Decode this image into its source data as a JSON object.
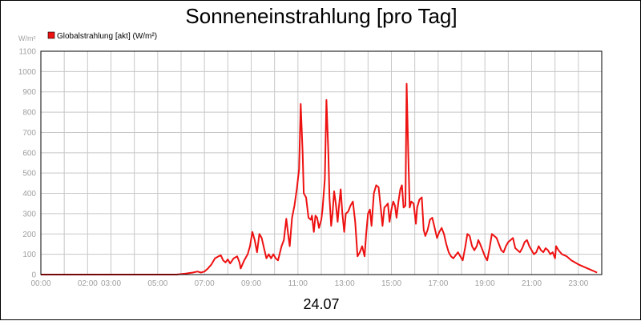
{
  "chart_data": {
    "type": "line",
    "title": "Sonneneinstrahlung [pro Tag]",
    "ylabel": "W/m²",
    "xlabel": "24.07",
    "ylim": [
      0,
      1100
    ],
    "xlim": [
      0,
      24
    ],
    "grid": true,
    "legend_position": "top-left",
    "yticks": [
      "0",
      "100",
      "200",
      "300",
      "400",
      "500",
      "600",
      "700",
      "800",
      "900",
      "1000",
      "1100"
    ],
    "xticks": [
      {
        "x": 0,
        "label": "00:00"
      },
      {
        "x": 2,
        "label": "02:00"
      },
      {
        "x": 3,
        "label": "03:00"
      },
      {
        "x": 5,
        "label": "05:00"
      },
      {
        "x": 7,
        "label": "07:00"
      },
      {
        "x": 9,
        "label": "09:00"
      },
      {
        "x": 11,
        "label": "11:00"
      },
      {
        "x": 13,
        "label": "13:00"
      },
      {
        "x": 15,
        "label": "15:00"
      },
      {
        "x": 17,
        "label": "17:00"
      },
      {
        "x": 19,
        "label": "19:00"
      },
      {
        "x": 21,
        "label": "21:00"
      },
      {
        "x": 23,
        "label": "23:00"
      }
    ],
    "series": [
      {
        "name": "Globalstrahlung [akt] (W/m²)",
        "color": "#ee1111",
        "points": [
          [
            0,
            0
          ],
          [
            5.8,
            0
          ],
          [
            6.2,
            5
          ],
          [
            6.5,
            10
          ],
          [
            6.7,
            15
          ],
          [
            6.85,
            10
          ],
          [
            7.0,
            15
          ],
          [
            7.15,
            30
          ],
          [
            7.3,
            50
          ],
          [
            7.45,
            80
          ],
          [
            7.6,
            90
          ],
          [
            7.7,
            95
          ],
          [
            7.8,
            70
          ],
          [
            7.9,
            60
          ],
          [
            8.0,
            75
          ],
          [
            8.1,
            55
          ],
          [
            8.25,
            80
          ],
          [
            8.4,
            90
          ],
          [
            8.5,
            60
          ],
          [
            8.55,
            30
          ],
          [
            8.7,
            70
          ],
          [
            8.85,
            100
          ],
          [
            8.95,
            140
          ],
          [
            9.05,
            210
          ],
          [
            9.15,
            170
          ],
          [
            9.25,
            110
          ],
          [
            9.35,
            200
          ],
          [
            9.45,
            180
          ],
          [
            9.55,
            130
          ],
          [
            9.65,
            80
          ],
          [
            9.75,
            100
          ],
          [
            9.85,
            80
          ],
          [
            9.95,
            100
          ],
          [
            10.05,
            80
          ],
          [
            10.15,
            70
          ],
          [
            10.3,
            140
          ],
          [
            10.4,
            170
          ],
          [
            10.5,
            275
          ],
          [
            10.6,
            180
          ],
          [
            10.65,
            140
          ],
          [
            10.75,
            280
          ],
          [
            10.85,
            340
          ],
          [
            10.95,
            420
          ],
          [
            11.05,
            520
          ],
          [
            11.12,
            840
          ],
          [
            11.2,
            600
          ],
          [
            11.25,
            400
          ],
          [
            11.35,
            380
          ],
          [
            11.45,
            280
          ],
          [
            11.55,
            270
          ],
          [
            11.6,
            290
          ],
          [
            11.68,
            210
          ],
          [
            11.75,
            290
          ],
          [
            11.82,
            280
          ],
          [
            11.9,
            230
          ],
          [
            12.0,
            270
          ],
          [
            12.05,
            320
          ],
          [
            12.15,
            470
          ],
          [
            12.22,
            860
          ],
          [
            12.3,
            600
          ],
          [
            12.35,
            380
          ],
          [
            12.42,
            240
          ],
          [
            12.48,
            300
          ],
          [
            12.55,
            410
          ],
          [
            12.62,
            350
          ],
          [
            12.7,
            260
          ],
          [
            12.75,
            330
          ],
          [
            12.83,
            420
          ],
          [
            12.9,
            300
          ],
          [
            12.98,
            210
          ],
          [
            13.05,
            300
          ],
          [
            13.15,
            310
          ],
          [
            13.25,
            340
          ],
          [
            13.35,
            360
          ],
          [
            13.45,
            260
          ],
          [
            13.55,
            90
          ],
          [
            13.65,
            110
          ],
          [
            13.75,
            140
          ],
          [
            13.85,
            90
          ],
          [
            13.92,
            200
          ],
          [
            14.0,
            300
          ],
          [
            14.08,
            320
          ],
          [
            14.15,
            240
          ],
          [
            14.25,
            400
          ],
          [
            14.35,
            440
          ],
          [
            14.45,
            430
          ],
          [
            14.55,
            320
          ],
          [
            14.62,
            240
          ],
          [
            14.7,
            330
          ],
          [
            14.78,
            340
          ],
          [
            14.85,
            350
          ],
          [
            14.92,
            260
          ],
          [
            15.0,
            320
          ],
          [
            15.08,
            360
          ],
          [
            15.15,
            340
          ],
          [
            15.22,
            280
          ],
          [
            15.3,
            360
          ],
          [
            15.38,
            420
          ],
          [
            15.45,
            440
          ],
          [
            15.52,
            330
          ],
          [
            15.6,
            340
          ],
          [
            15.65,
            940
          ],
          [
            15.72,
            600
          ],
          [
            15.78,
            330
          ],
          [
            15.85,
            360
          ],
          [
            15.95,
            350
          ],
          [
            16.05,
            250
          ],
          [
            16.1,
            330
          ],
          [
            16.2,
            370
          ],
          [
            16.3,
            380
          ],
          [
            16.38,
            220
          ],
          [
            16.45,
            190
          ],
          [
            16.55,
            220
          ],
          [
            16.65,
            270
          ],
          [
            16.75,
            280
          ],
          [
            16.85,
            230
          ],
          [
            16.95,
            180
          ],
          [
            17.05,
            210
          ],
          [
            17.15,
            230
          ],
          [
            17.25,
            200
          ],
          [
            17.35,
            150
          ],
          [
            17.45,
            110
          ],
          [
            17.55,
            90
          ],
          [
            17.65,
            80
          ],
          [
            17.75,
            95
          ],
          [
            17.85,
            110
          ],
          [
            17.95,
            90
          ],
          [
            18.05,
            70
          ],
          [
            18.15,
            130
          ],
          [
            18.25,
            200
          ],
          [
            18.35,
            190
          ],
          [
            18.45,
            140
          ],
          [
            18.55,
            120
          ],
          [
            18.65,
            140
          ],
          [
            18.72,
            170
          ],
          [
            18.8,
            150
          ],
          [
            18.9,
            120
          ],
          [
            19.0,
            90
          ],
          [
            19.1,
            70
          ],
          [
            19.2,
            130
          ],
          [
            19.3,
            200
          ],
          [
            19.4,
            190
          ],
          [
            19.5,
            180
          ],
          [
            19.6,
            150
          ],
          [
            19.7,
            120
          ],
          [
            19.8,
            110
          ],
          [
            19.9,
            140
          ],
          [
            20.0,
            160
          ],
          [
            20.1,
            170
          ],
          [
            20.2,
            180
          ],
          [
            20.3,
            130
          ],
          [
            20.4,
            120
          ],
          [
            20.5,
            110
          ],
          [
            20.6,
            130
          ],
          [
            20.7,
            160
          ],
          [
            20.8,
            170
          ],
          [
            20.9,
            140
          ],
          [
            21.0,
            120
          ],
          [
            21.1,
            100
          ],
          [
            21.2,
            110
          ],
          [
            21.3,
            140
          ],
          [
            21.4,
            120
          ],
          [
            21.5,
            110
          ],
          [
            21.6,
            130
          ],
          [
            21.7,
            120
          ],
          [
            21.8,
            100
          ],
          [
            21.9,
            110
          ],
          [
            22.0,
            80
          ],
          [
            22.05,
            140
          ],
          [
            22.15,
            120
          ],
          [
            22.3,
            100
          ],
          [
            22.5,
            90
          ],
          [
            22.7,
            70
          ],
          [
            23.0,
            50
          ],
          [
            23.4,
            30
          ],
          [
            23.8,
            10
          ],
          [
            24.2,
            0
          ],
          [
            24.5,
            0
          ]
        ]
      }
    ]
  }
}
